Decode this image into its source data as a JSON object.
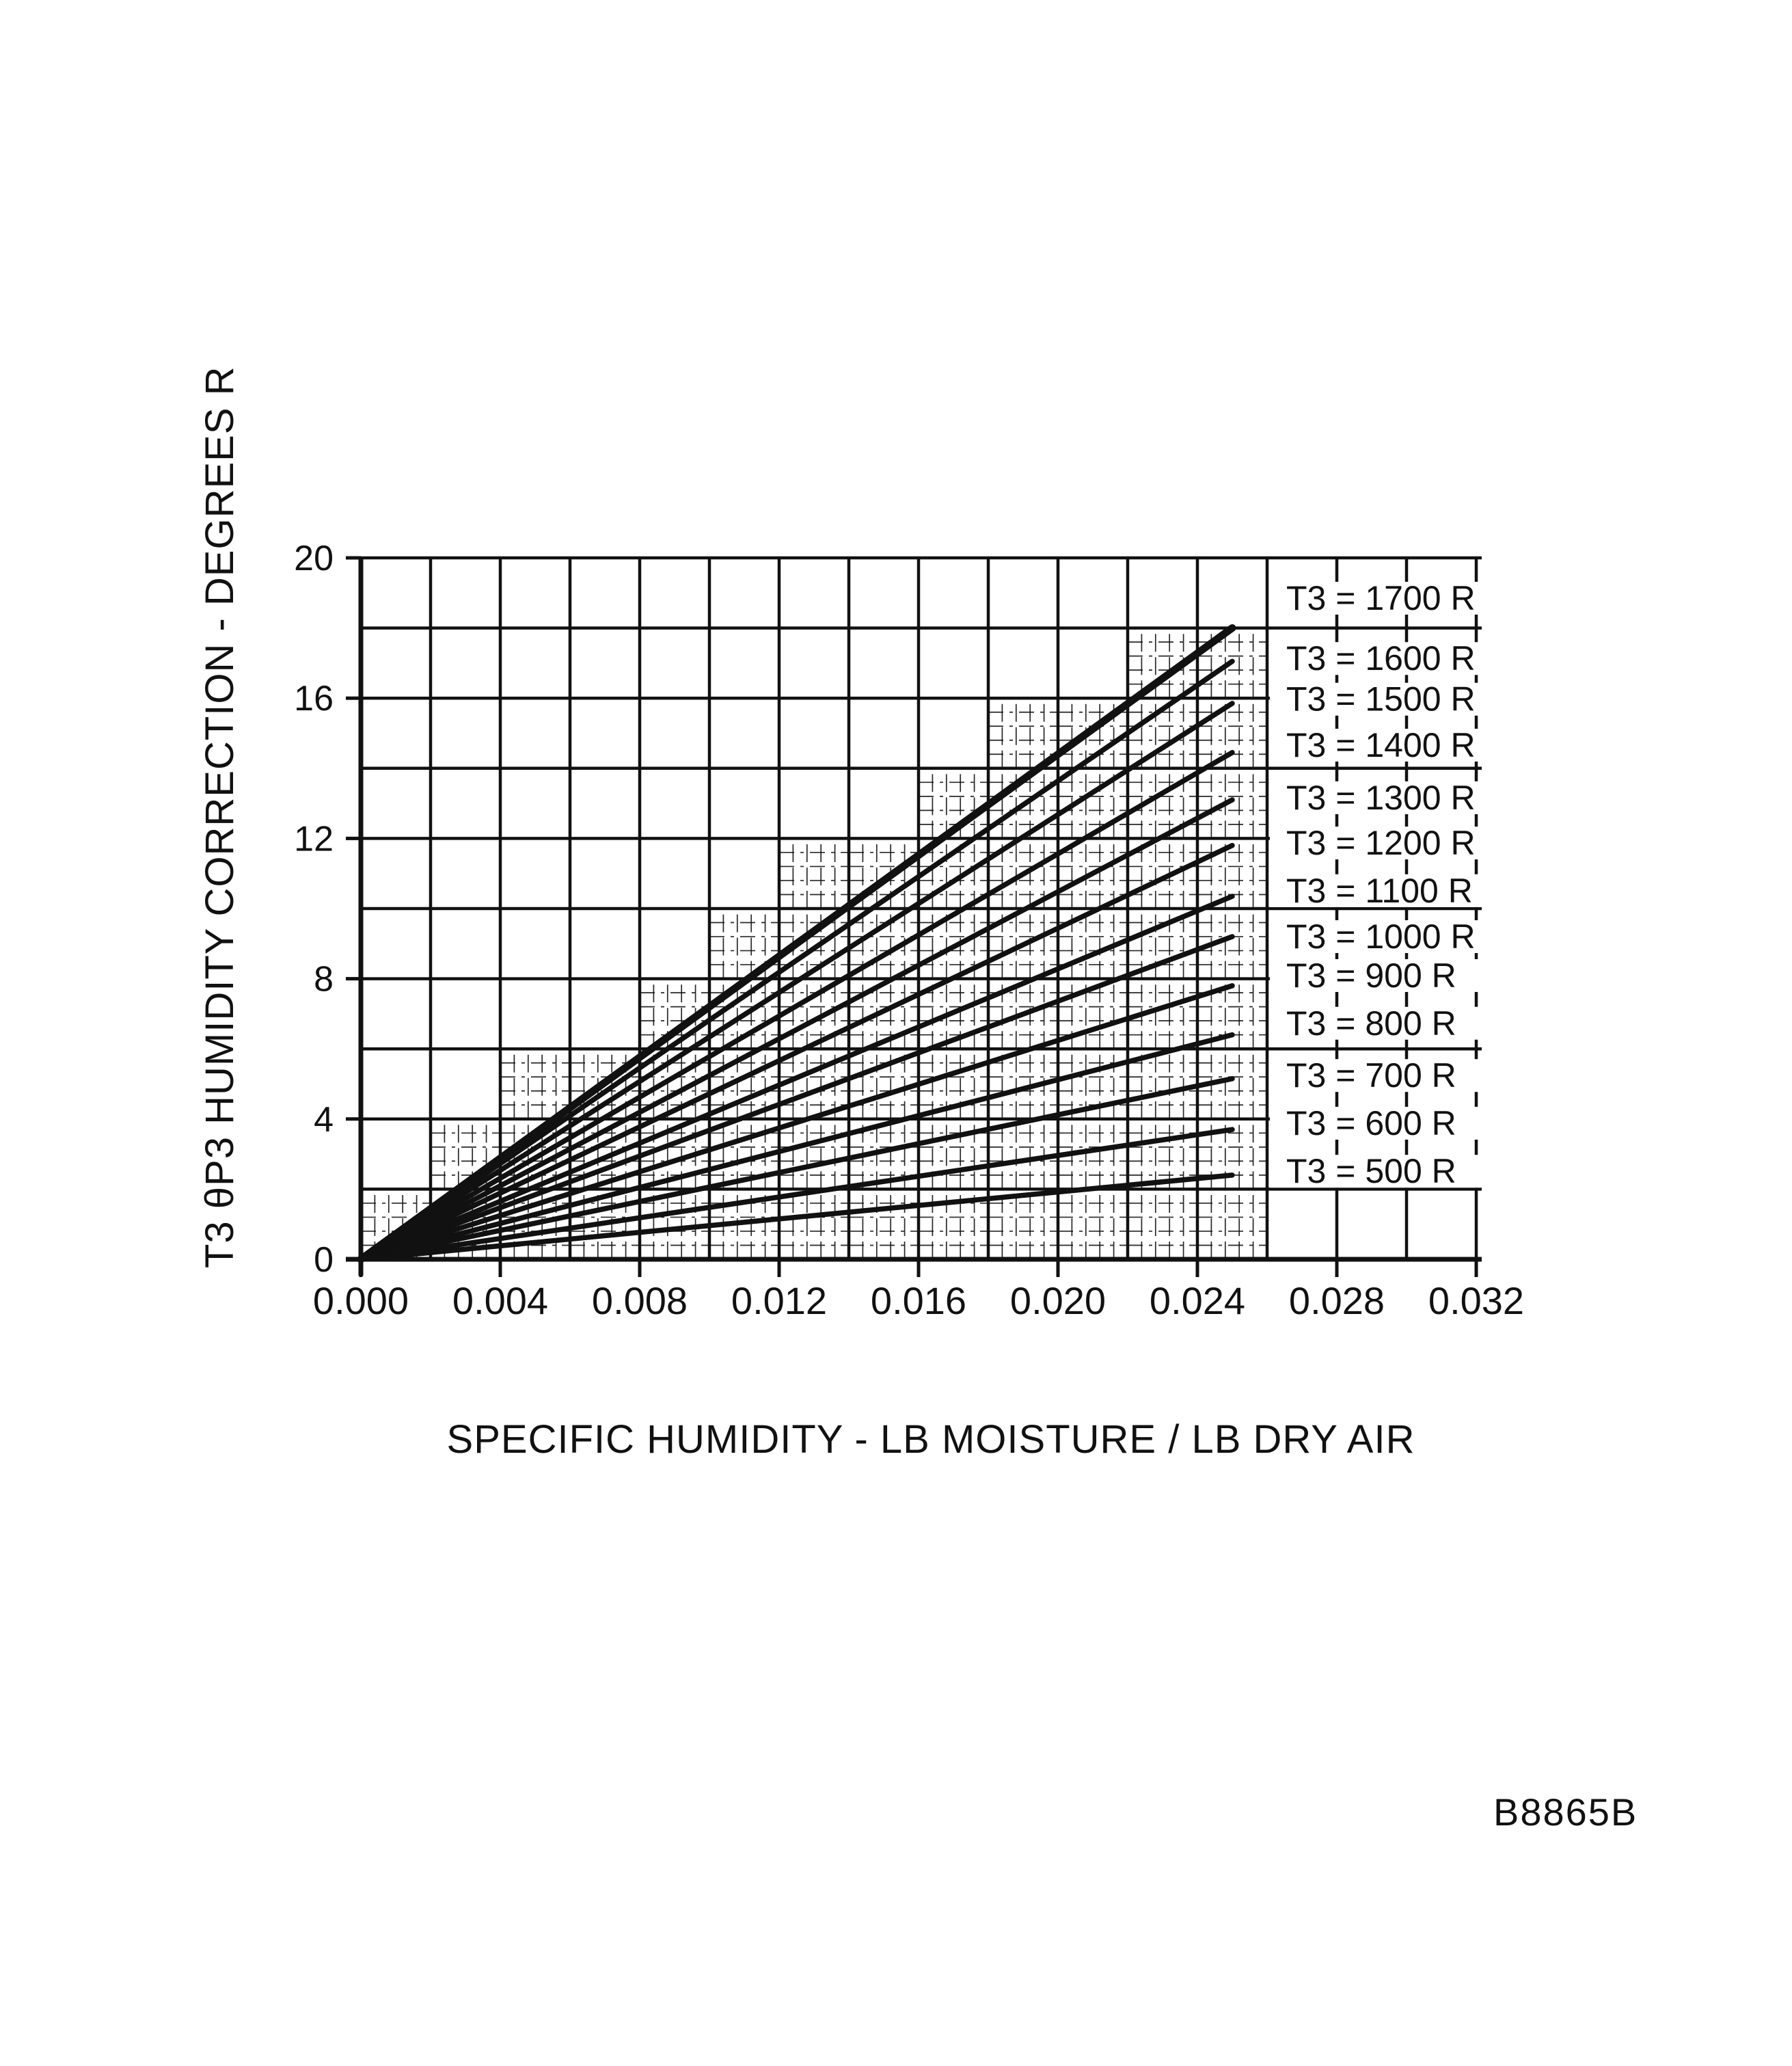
{
  "page": {
    "background": "#ffffff",
    "ink": "#111111"
  },
  "footer": {
    "figure_code": "B8865B"
  },
  "chart_data": {
    "type": "line",
    "title": "",
    "xlabel": "SPECIFIC HUMIDITY - LB MOISTURE / LB DRY AIR",
    "ylabel": "T3 θP3 HUMIDITY CORRECTION - DEGREES R",
    "xlim": [
      0,
      0.032
    ],
    "ylim": [
      0,
      20
    ],
    "x_ticks": [
      0.0,
      0.004,
      0.008,
      0.012,
      0.016,
      0.02,
      0.024,
      0.028,
      0.032
    ],
    "x_tick_labels": [
      "0.000",
      "0.004",
      "0.008",
      "0.012",
      "0.016",
      "0.020",
      "0.024",
      "0.028",
      "0.032"
    ],
    "y_ticks": [
      0,
      4,
      8,
      12,
      16,
      20
    ],
    "y_tick_labels": [
      "0",
      "4",
      "8",
      "12",
      "16",
      "20"
    ],
    "grid": {
      "major_dx": 0.002,
      "major_dy": 2,
      "minor_dx": 0.0004,
      "minor_dy": 0.4,
      "minor_region": "staircase of major cells lying under the T3=1700 line, x ≤ 0.026",
      "grid_on": true
    },
    "legend_position": "right-inside",
    "series": [
      {
        "name": "T3 = 1700 R",
        "t3": 1700,
        "x": [
          0,
          0.025
        ],
        "y": [
          0,
          18.0
        ],
        "bold": true,
        "label_y": 18.85
      },
      {
        "name": "T3 = 1600 R",
        "t3": 1600,
        "x": [
          0,
          0.025
        ],
        "y": [
          0,
          17.05
        ],
        "bold": false,
        "label_y": 17.13
      },
      {
        "name": "T3 = 1500 R",
        "t3": 1500,
        "x": [
          0,
          0.025
        ],
        "y": [
          0,
          15.85
        ],
        "bold": false,
        "label_y": 15.97
      },
      {
        "name": "T3 = 1400 R",
        "t3": 1400,
        "x": [
          0,
          0.025
        ],
        "y": [
          0,
          14.45
        ],
        "bold": false,
        "label_y": 14.66
      },
      {
        "name": "T3 = 1300 R",
        "t3": 1300,
        "x": [
          0,
          0.025
        ],
        "y": [
          0,
          13.1
        ],
        "bold": false,
        "label_y": 13.16
      },
      {
        "name": "T3 = 1200 R",
        "t3": 1200,
        "x": [
          0,
          0.025
        ],
        "y": [
          0,
          11.8
        ],
        "bold": false,
        "label_y": 11.87
      },
      {
        "name": "T3 = 1100 R",
        "t3": 1100,
        "x": [
          0,
          0.025
        ],
        "y": [
          0,
          10.35
        ],
        "bold": false,
        "label_y": 10.51
      },
      {
        "name": "T3 = 1000 R",
        "t3": 1000,
        "x": [
          0,
          0.025
        ],
        "y": [
          0,
          9.2
        ],
        "bold": false,
        "label_y": 9.2
      },
      {
        "name": "T3 = 900 R",
        "t3": 900,
        "x": [
          0,
          0.025
        ],
        "y": [
          0,
          7.8
        ],
        "bold": false,
        "label_y": 8.09
      },
      {
        "name": "T3 = 800 R",
        "t3": 800,
        "x": [
          0,
          0.025
        ],
        "y": [
          0,
          6.4
        ],
        "bold": false,
        "label_y": 6.73
      },
      {
        "name": "T3 = 700 R",
        "t3": 700,
        "x": [
          0,
          0.025
        ],
        "y": [
          0,
          5.15
        ],
        "bold": false,
        "label_y": 5.24
      },
      {
        "name": "T3 = 600 R",
        "t3": 600,
        "x": [
          0,
          0.025
        ],
        "y": [
          0,
          3.7
        ],
        "bold": false,
        "label_y": 3.88
      },
      {
        "name": "T3 = 500 R",
        "t3": 500,
        "x": [
          0,
          0.025
        ],
        "y": [
          0,
          2.4
        ],
        "bold": false,
        "label_y": 2.51
      }
    ]
  }
}
